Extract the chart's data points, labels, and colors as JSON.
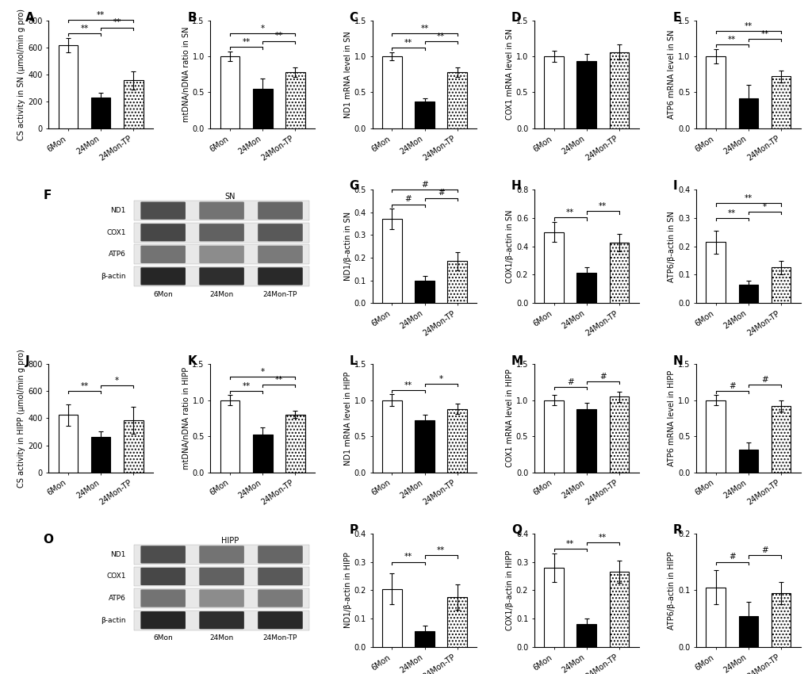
{
  "categories": [
    "6Mon",
    "24Mon",
    "24Mon-TP"
  ],
  "A": {
    "values": [
      615,
      230,
      355
    ],
    "errors": [
      55,
      35,
      65
    ],
    "ylabel": "CS activity in SN (μmol/min g pro)",
    "ylim": [
      0,
      800
    ],
    "yticks": [
      0,
      200,
      400,
      600,
      800
    ],
    "ytick_labels": [
      "0",
      "200",
      "400",
      "600",
      "800"
    ],
    "significance": [
      [
        "6Mon",
        "24Mon",
        "**"
      ],
      [
        "24Mon",
        "24Mon-TP",
        "**"
      ],
      [
        "6Mon",
        "24Mon-TP",
        "**"
      ]
    ]
  },
  "B": {
    "values": [
      1.0,
      0.55,
      0.78
    ],
    "errors": [
      0.07,
      0.14,
      0.07
    ],
    "ylabel": "mtDNA/nDNA ratio in SN",
    "ylim": [
      0,
      1.5
    ],
    "yticks": [
      0.0,
      0.5,
      1.0,
      1.5
    ],
    "ytick_labels": [
      "0.0",
      "0.5",
      "1.0",
      "1.5"
    ],
    "significance": [
      [
        "6Mon",
        "24Mon",
        "**"
      ],
      [
        "24Mon",
        "24Mon-TP",
        "**"
      ],
      [
        "6Mon",
        "24Mon-TP",
        "*"
      ]
    ]
  },
  "C": {
    "values": [
      1.0,
      0.37,
      0.78
    ],
    "errors": [
      0.06,
      0.05,
      0.07
    ],
    "ylabel": "ND1 mRNA level in SN",
    "ylim": [
      0,
      1.5
    ],
    "yticks": [
      0.0,
      0.5,
      1.0,
      1.5
    ],
    "ytick_labels": [
      "0.0",
      "0.5",
      "1.0",
      "1.5"
    ],
    "significance": [
      [
        "6Mon",
        "24Mon",
        "**"
      ],
      [
        "24Mon",
        "24Mon-TP",
        "**"
      ],
      [
        "6Mon",
        "24Mon-TP",
        "**"
      ]
    ]
  },
  "D": {
    "values": [
      1.0,
      0.93,
      1.06
    ],
    "errors": [
      0.08,
      0.1,
      0.1
    ],
    "ylabel": "COX1 mRNA level in SN",
    "ylim": [
      0,
      1.5
    ],
    "yticks": [
      0.0,
      0.5,
      1.0,
      1.5
    ],
    "ytick_labels": [
      "0.0",
      "0.5",
      "1.0",
      "1.5"
    ],
    "significance": []
  },
  "E": {
    "values": [
      1.0,
      0.42,
      0.72
    ],
    "errors": [
      0.1,
      0.18,
      0.08
    ],
    "ylabel": "ATP6 mRNA level in SN",
    "ylim": [
      0,
      1.5
    ],
    "yticks": [
      0.0,
      0.5,
      1.0,
      1.5
    ],
    "ytick_labels": [
      "0.0",
      "0.5",
      "1.0",
      "1.5"
    ],
    "significance": [
      [
        "6Mon",
        "24Mon",
        "**"
      ],
      [
        "24Mon",
        "24Mon-TP",
        "**"
      ],
      [
        "6Mon",
        "24Mon-TP",
        "**"
      ]
    ]
  },
  "G": {
    "values": [
      0.37,
      0.1,
      0.185
    ],
    "errors": [
      0.045,
      0.018,
      0.04
    ],
    "ylabel": "ND1/β-actin in SN",
    "ylim": [
      0,
      0.5
    ],
    "yticks": [
      0.0,
      0.1,
      0.2,
      0.3,
      0.4,
      0.5
    ],
    "ytick_labels": [
      "0.0",
      "0.1",
      "0.2",
      "0.3",
      "0.4",
      "0.5"
    ],
    "significance": [
      [
        "6Mon",
        "24Mon",
        "#"
      ],
      [
        "24Mon",
        "24Mon-TP",
        "#"
      ],
      [
        "6Mon",
        "24Mon-TP",
        "#"
      ]
    ]
  },
  "H": {
    "values": [
      0.5,
      0.215,
      0.425
    ],
    "errors": [
      0.07,
      0.04,
      0.06
    ],
    "ylabel": "COX1/β-actin in SN",
    "ylim": [
      0,
      0.8
    ],
    "yticks": [
      0.0,
      0.2,
      0.4,
      0.6,
      0.8
    ],
    "ytick_labels": [
      "0.0",
      "0.2",
      "0.4",
      "0.6",
      "0.8"
    ],
    "significance": [
      [
        "6Mon",
        "24Mon",
        "**"
      ],
      [
        "24Mon",
        "24Mon-TP",
        "**"
      ]
    ]
  },
  "I": {
    "values": [
      0.215,
      0.065,
      0.125
    ],
    "errors": [
      0.04,
      0.015,
      0.025
    ],
    "ylabel": "ATP6/β-actin in SN",
    "ylim": [
      0,
      0.4
    ],
    "yticks": [
      0.0,
      0.1,
      0.2,
      0.3,
      0.4
    ],
    "ytick_labels": [
      "0.0",
      "0.1",
      "0.2",
      "0.3",
      "0.4"
    ],
    "significance": [
      [
        "6Mon",
        "24Mon",
        "**"
      ],
      [
        "24Mon",
        "24Mon-TP",
        "*"
      ],
      [
        "6Mon",
        "24Mon-TP",
        "**"
      ]
    ]
  },
  "J": {
    "values": [
      425,
      260,
      385
    ],
    "errors": [
      80,
      45,
      100
    ],
    "ylabel": "CS activity in HIPP (μmol/min g pro)",
    "ylim": [
      0,
      800
    ],
    "yticks": [
      0,
      200,
      400,
      600,
      800
    ],
    "ytick_labels": [
      "0",
      "200",
      "400",
      "600",
      "800"
    ],
    "significance": [
      [
        "6Mon",
        "24Mon",
        "**"
      ],
      [
        "24Mon",
        "24Mon-TP",
        "*"
      ]
    ]
  },
  "K": {
    "values": [
      1.0,
      0.525,
      0.8
    ],
    "errors": [
      0.07,
      0.1,
      0.05
    ],
    "ylabel": "mtDNA/nDNA ratio in HIPP",
    "ylim": [
      0,
      1.5
    ],
    "yticks": [
      0.0,
      0.5,
      1.0,
      1.5
    ],
    "ytick_labels": [
      "0.0",
      "0.5",
      "1.0",
      "1.5"
    ],
    "significance": [
      [
        "6Mon",
        "24Mon",
        "**"
      ],
      [
        "24Mon",
        "24Mon-TP",
        "**"
      ],
      [
        "6Mon",
        "24Mon-TP",
        "*"
      ]
    ]
  },
  "L": {
    "values": [
      1.0,
      0.72,
      0.88
    ],
    "errors": [
      0.08,
      0.08,
      0.07
    ],
    "ylabel": "ND1 mRNA level in HIPP",
    "ylim": [
      0,
      1.5
    ],
    "yticks": [
      0.0,
      0.5,
      1.0,
      1.5
    ],
    "ytick_labels": [
      "0.0",
      "0.5",
      "1.0",
      "1.5"
    ],
    "significance": [
      [
        "6Mon",
        "24Mon",
        "**"
      ],
      [
        "24Mon",
        "24Mon-TP",
        "*"
      ]
    ]
  },
  "M": {
    "values": [
      1.0,
      0.88,
      1.05
    ],
    "errors": [
      0.07,
      0.08,
      0.07
    ],
    "ylabel": "COX1 mRNA level in HIPP",
    "ylim": [
      0,
      1.5
    ],
    "yticks": [
      0.0,
      0.5,
      1.0,
      1.5
    ],
    "ytick_labels": [
      "0.0",
      "0.5",
      "1.0",
      "1.5"
    ],
    "significance": [
      [
        "6Mon",
        "24Mon",
        "#"
      ],
      [
        "24Mon",
        "24Mon-TP",
        "#"
      ]
    ]
  },
  "N": {
    "values": [
      1.0,
      0.32,
      0.92
    ],
    "errors": [
      0.07,
      0.1,
      0.08
    ],
    "ylabel": "ATP6 mRNA level in HIPP",
    "ylim": [
      0,
      1.5
    ],
    "yticks": [
      0.0,
      0.5,
      1.0,
      1.5
    ],
    "ytick_labels": [
      "0.0",
      "0.5",
      "1.0",
      "1.5"
    ],
    "significance": [
      [
        "6Mon",
        "24Mon",
        "#"
      ],
      [
        "24Mon",
        "24Mon-TP",
        "#"
      ]
    ]
  },
  "P": {
    "values": [
      0.205,
      0.055,
      0.175
    ],
    "errors": [
      0.055,
      0.02,
      0.045
    ],
    "ylabel": "ND1/β-actin in HIPP",
    "ylim": [
      0,
      0.4
    ],
    "yticks": [
      0.0,
      0.1,
      0.2,
      0.3,
      0.4
    ],
    "ytick_labels": [
      "0.0",
      "0.1",
      "0.2",
      "0.3",
      "0.4"
    ],
    "significance": [
      [
        "6Mon",
        "24Mon",
        "**"
      ],
      [
        "24Mon",
        "24Mon-TP",
        "**"
      ]
    ]
  },
  "Q": {
    "values": [
      0.28,
      0.08,
      0.265
    ],
    "errors": [
      0.05,
      0.02,
      0.04
    ],
    "ylabel": "COX1/β-actin in HIPP",
    "ylim": [
      0,
      0.4
    ],
    "yticks": [
      0.0,
      0.1,
      0.2,
      0.3,
      0.4
    ],
    "ytick_labels": [
      "0.0",
      "0.1",
      "0.2",
      "0.3",
      "0.4"
    ],
    "significance": [
      [
        "6Mon",
        "24Mon",
        "**"
      ],
      [
        "24Mon",
        "24Mon-TP",
        "**"
      ]
    ]
  },
  "R": {
    "values": [
      0.105,
      0.055,
      0.095
    ],
    "errors": [
      0.03,
      0.025,
      0.02
    ],
    "ylabel": "ATP6/β-actin in HIPP",
    "ylim": [
      0,
      0.2
    ],
    "yticks": [
      0.0,
      0.1,
      0.2
    ],
    "ytick_labels": [
      "0.0",
      "0.1",
      "0.2"
    ],
    "significance": [
      [
        "6Mon",
        "24Mon",
        "#"
      ],
      [
        "24Mon",
        "24Mon-TP",
        "#"
      ]
    ]
  }
}
